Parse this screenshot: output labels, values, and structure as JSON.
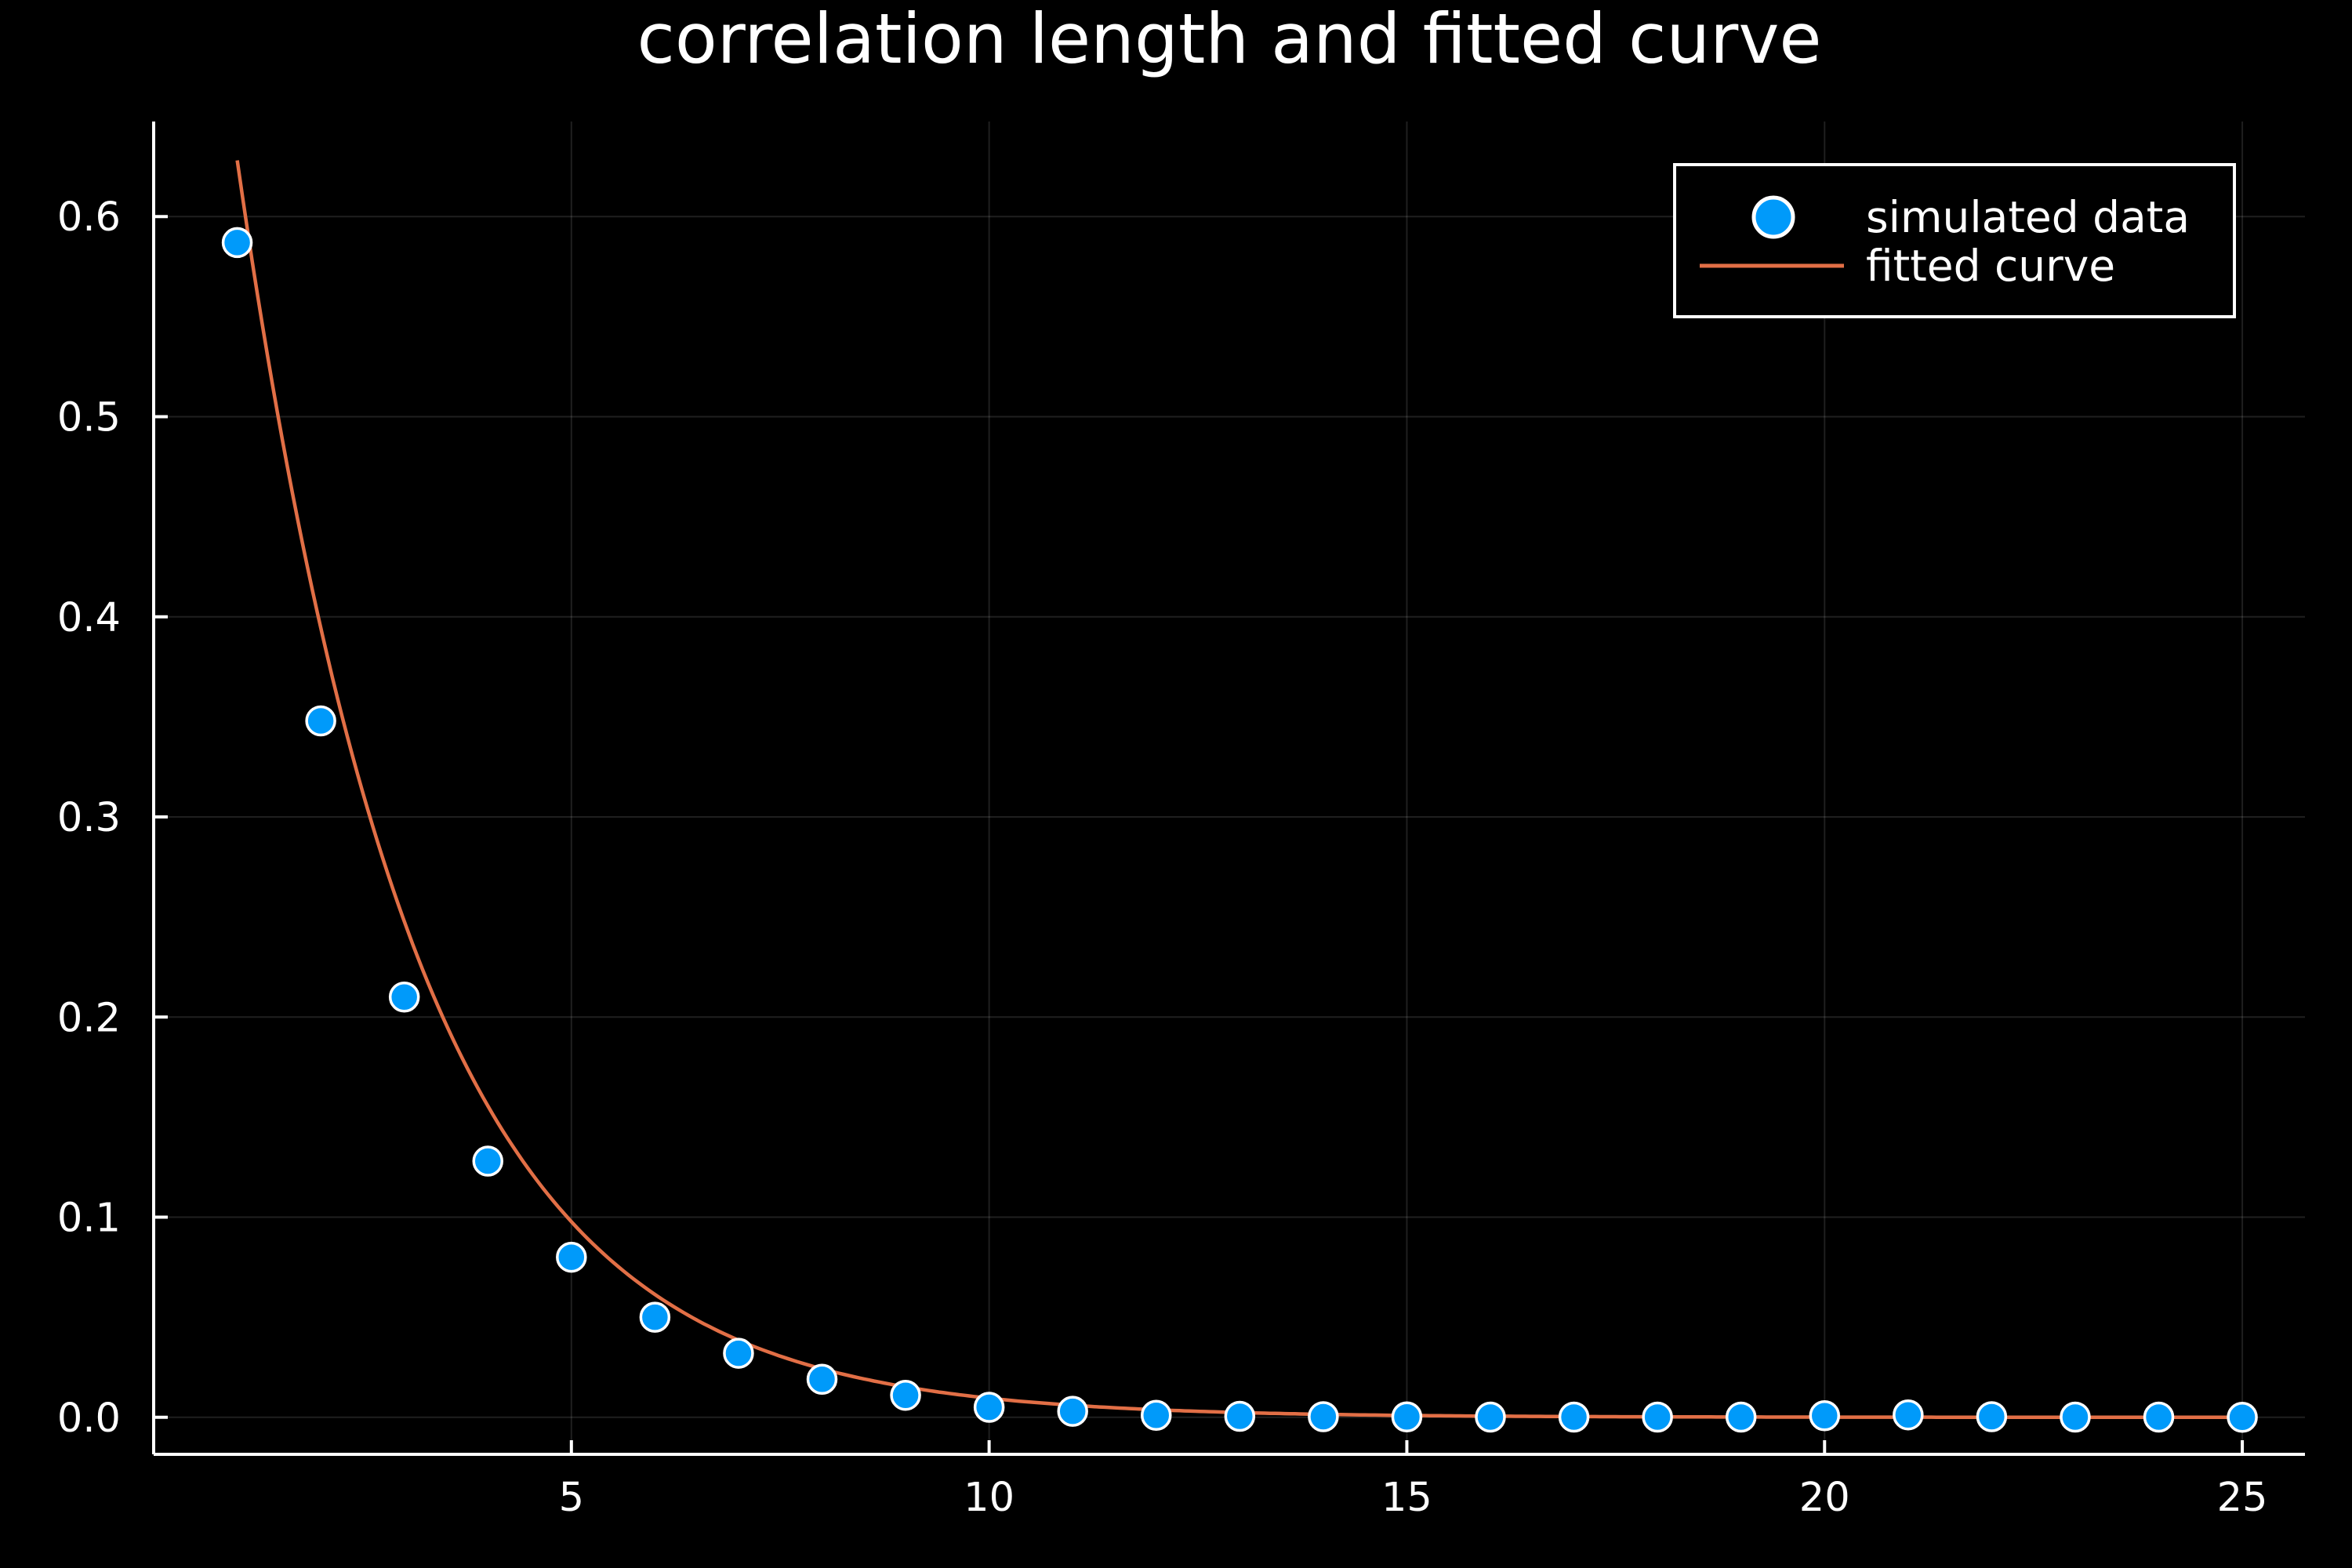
{
  "chart_data": {
    "type": "scatter",
    "title": "correlation length and fitted curve",
    "xlabel": "",
    "ylabel": "",
    "xlim": [
      0.0,
      25.75
    ],
    "ylim": [
      -0.0185,
      0.6475
    ],
    "xticks": [
      5,
      10,
      15,
      20,
      25
    ],
    "xtick_labels": [
      "5",
      "10",
      "15",
      "20",
      "25"
    ],
    "yticks": [
      0.0,
      0.1,
      0.2,
      0.3,
      0.4,
      0.5,
      0.6
    ],
    "ytick_labels": [
      "0.0",
      "0.1",
      "0.2",
      "0.3",
      "0.4",
      "0.5",
      "0.6"
    ],
    "grid": true,
    "legend_position": "top-right",
    "series": [
      {
        "name": "simulated data",
        "kind": "scatter",
        "color": "#009AFA",
        "x": [
          1,
          2,
          3,
          4,
          5,
          6,
          7,
          8,
          9,
          10,
          11,
          12,
          13,
          14,
          15,
          16,
          17,
          18,
          19,
          20,
          21,
          22,
          23,
          24,
          25
        ],
        "y": [
          0.587,
          0.348,
          0.21,
          0.128,
          0.08,
          0.05,
          0.032,
          0.019,
          0.011,
          0.005,
          0.003,
          0.001,
          0.0005,
          0.0003,
          0.0002,
          0.0001,
          0.0001,
          0.0001,
          0.0001,
          0.0008,
          0.0012,
          0.0003,
          0.0001,
          0.0001,
          0.0
        ]
      },
      {
        "name": "fitted curve",
        "kind": "line",
        "color": "#E26F46",
        "model": "a*exp(-x/xi)",
        "a": 1.0,
        "xi": 2.15,
        "x_range": [
          1,
          25
        ]
      }
    ]
  }
}
